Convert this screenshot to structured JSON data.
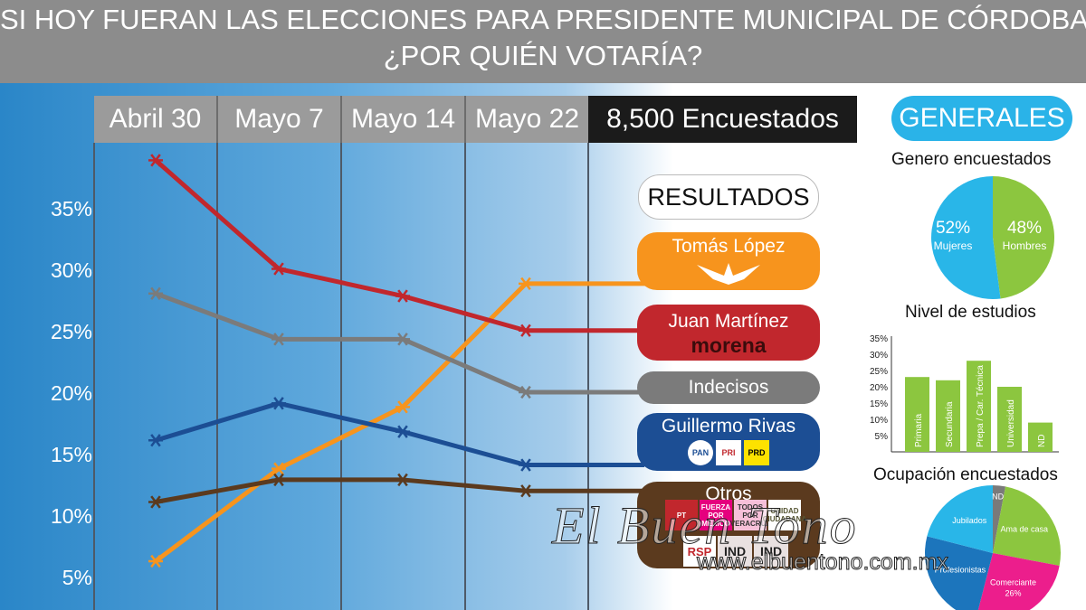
{
  "header": {
    "title_line1": "SI HOY FUERAN LAS ELECCIONES PARA PRESIDENTE MUNICIPAL DE CÓRDOBA,",
    "title_line2": "¿POR QUIÉN VOTARÍA?"
  },
  "encuestados": "8,500 Encuestados",
  "resultados_label": "RESULTADOS",
  "chart_data": [
    {
      "type": "line",
      "x": [
        "Abril 30",
        "Mayo 7",
        "Mayo 14",
        "Mayo 22"
      ],
      "y_ticks": [
        "35%",
        "30%",
        "25%",
        "20%",
        "15%",
        "10%",
        "5%"
      ],
      "ylim": [
        3,
        40
      ],
      "series": [
        {
          "name": "Tomás López",
          "color": "#f7941d",
          "values": [
            6.5,
            14,
            19,
            29
          ]
        },
        {
          "name": "Juan Martínez",
          "color": "#c1272d",
          "values": [
            39,
            30.2,
            28,
            25.2
          ]
        },
        {
          "name": "Indecisos",
          "color": "#7b7b7b",
          "values": [
            28.2,
            24.5,
            24.5,
            20.2
          ]
        },
        {
          "name": "Guillermo Rivas",
          "color": "#1c4e94",
          "values": [
            16.3,
            19.3,
            17,
            14.3
          ]
        },
        {
          "name": "Otros",
          "color": "#5b3a1e",
          "values": [
            11.3,
            13.1,
            13.1,
            12.2
          ]
        }
      ]
    },
    {
      "type": "pie",
      "title": "Genero encuestados",
      "slices": [
        {
          "label": "Mujeres",
          "value": 52,
          "text": "52%",
          "color": "#29b6e8"
        },
        {
          "label": "Hombres",
          "value": 48,
          "text": "48%",
          "color": "#8cc63f"
        }
      ]
    },
    {
      "type": "bar",
      "title": "Nivel de estudios",
      "categories": [
        "Primaria",
        "Secundaria",
        "Prepa / Car. Técnica",
        "Universidad",
        "ND"
      ],
      "values": [
        23,
        22,
        28,
        20,
        9
      ],
      "y_ticks": [
        "35%",
        "30%",
        "25%",
        "20%",
        "15%",
        "10%",
        "5%"
      ],
      "ylim": [
        0,
        35
      ],
      "color": "#8cc63f"
    },
    {
      "type": "pie",
      "title": "Ocupación encuestados",
      "slices": [
        {
          "label": "ND",
          "value": 3,
          "color": "#7a7a7a",
          "text": ""
        },
        {
          "label": "Ama de casa",
          "value": 25,
          "color": "#8cc63f",
          "text": ""
        },
        {
          "label": "Comerciante",
          "value": 26,
          "color": "#ec1e8c",
          "text": "26%"
        },
        {
          "label": "Profesionistas",
          "value": 25,
          "color": "#1c75bc",
          "text": ""
        },
        {
          "label": "Jubilados",
          "value": 21,
          "color": "#29b6e8",
          "text": ""
        }
      ]
    }
  ],
  "legend_pills": [
    {
      "name": "Tomás López",
      "color": "#f7941d"
    },
    {
      "name": "Juan Martínez",
      "sub": "morena",
      "color": "#c1272d"
    },
    {
      "name": "Indecisos",
      "color": "#7b7b7b"
    },
    {
      "name": "Guillermo Rivas",
      "color": "#1c4e94",
      "logos": [
        "PAN",
        "PRI",
        "PRD"
      ]
    },
    {
      "name": "Otros",
      "color": "#5b3a1e",
      "logos": [
        "PT",
        "FUERZA POR MÉXICO",
        "TODOS POR VERACRUZ",
        "UNIDAD CIUDADANA",
        "RSP",
        "IND",
        "IND"
      ]
    }
  ],
  "generales": "GENERALES",
  "watermark": {
    "brand": "El Buen Tono",
    "url": "www.elbuentono.com.mx"
  }
}
